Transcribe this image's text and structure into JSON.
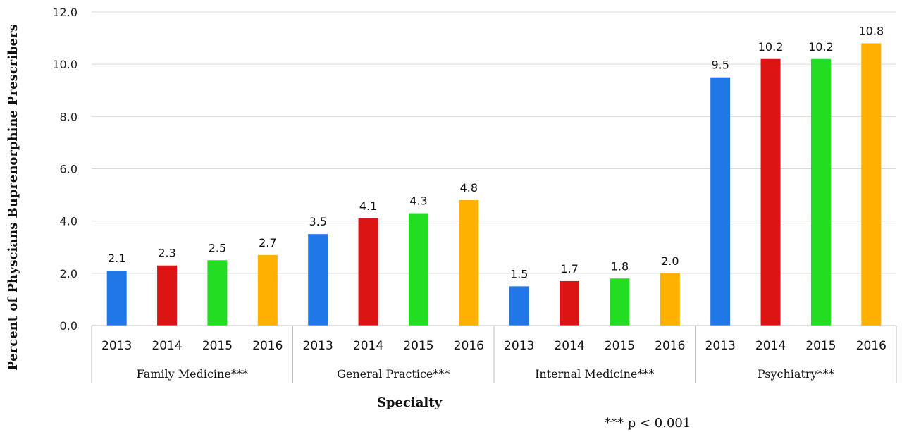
{
  "chart_data": {
    "type": "bar",
    "title": "",
    "xlabel": "Specialty",
    "ylabel": "Percent of Physcians Buprenorphine Prescribers",
    "ylim": [
      0,
      12
    ],
    "yticks": [
      "0.0",
      "2.0",
      "4.0",
      "6.0",
      "8.0",
      "10.0",
      "12.0"
    ],
    "grid": true,
    "groups": [
      {
        "name": "Family Medicine***",
        "years": [
          "2013",
          "2014",
          "2015",
          "2016"
        ],
        "values": [
          2.1,
          2.3,
          2.5,
          2.7
        ],
        "labels": [
          "2.1",
          "2.3",
          "2.5",
          "2.7"
        ]
      },
      {
        "name": "General Practice***",
        "years": [
          "2013",
          "2014",
          "2015",
          "2016"
        ],
        "values": [
          3.5,
          4.1,
          4.3,
          4.8
        ],
        "labels": [
          "3.5",
          "4.1",
          "4.3",
          "4.8"
        ]
      },
      {
        "name": "Internal Medicine***",
        "years": [
          "2013",
          "2014",
          "2015",
          "2016"
        ],
        "values": [
          1.5,
          1.7,
          1.8,
          2.0
        ],
        "labels": [
          "1.5",
          "1.7",
          "1.8",
          "2.0"
        ]
      },
      {
        "name": "Psychiatry***",
        "years": [
          "2013",
          "2014",
          "2015",
          "2016"
        ],
        "values": [
          9.5,
          10.2,
          10.2,
          10.8
        ],
        "labels": [
          "9.5",
          "10.2",
          "10.2",
          "10.8"
        ]
      }
    ],
    "colors": {
      "2013": "#1f77e8",
      "2014": "#dd1414",
      "2015": "#22dd22",
      "2016": "#ffb000"
    },
    "footnote": "*** p < 0.001"
  }
}
